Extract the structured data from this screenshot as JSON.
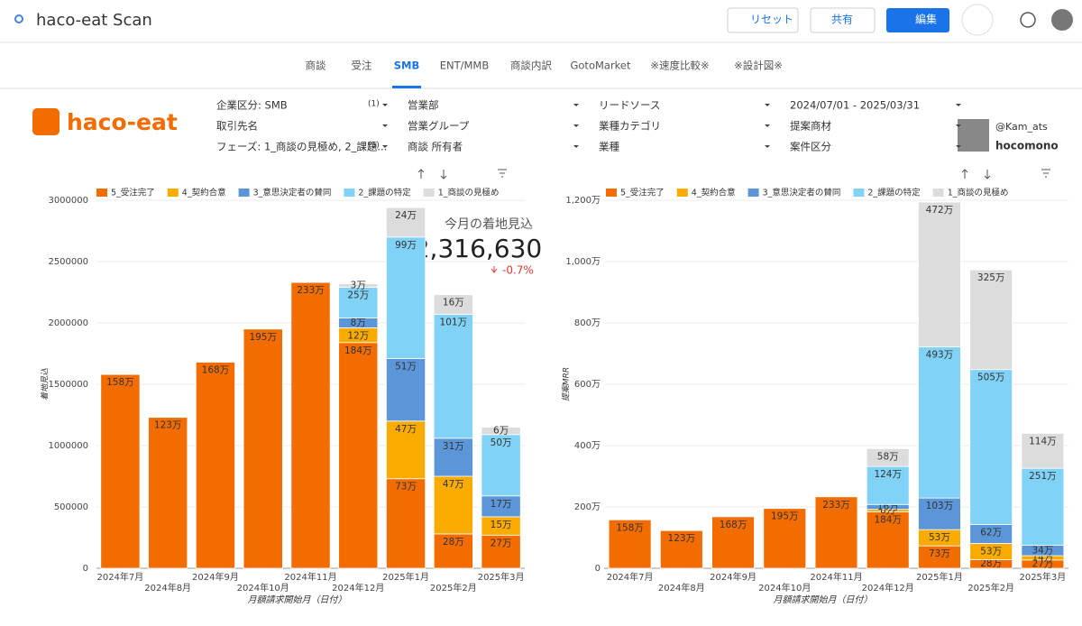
{
  "header": {
    "title": "haco-eat Scan",
    "buttons": [
      "リセット",
      "共有",
      "編集"
    ]
  },
  "tabs": {
    "items": [
      "商談",
      "受注",
      "SMB",
      "ENT/MMB",
      "商談内訳",
      "GotoMarket",
      "※速度比較※",
      "※設計図※"
    ],
    "active": 2
  },
  "logo": "haco-eat",
  "filters": [
    {
      "label": "企業区分: SMB",
      "count": "(1)"
    },
    {
      "label": "営業部"
    },
    {
      "label": "リードソース"
    },
    {
      "label": "2024/07/01 - 2025/03/31"
    },
    {
      "label": "取引先名"
    },
    {
      "label": "営業グループ"
    },
    {
      "label": "業種カテゴリ"
    },
    {
      "label": "提案商材"
    },
    {
      "label": "フェーズ: 1_商談の見極め, 2_課題...",
      "count": "(5)"
    },
    {
      "label": "商談 所有者"
    },
    {
      "label": "業種"
    },
    {
      "label": "案件区分"
    }
  ],
  "profile": {
    "handle": "@Kam_ats",
    "brand": "hocomono"
  },
  "kpi": {
    "title": "今月の着地見込",
    "value": "2,316,630",
    "change": "-0.7%"
  },
  "chart_data": [
    {
      "type": "stacked-bar",
      "y_label": "着地見込",
      "x_label": "月額請求開始月（日付）",
      "categories": [
        "2024年7月",
        "2024年8月",
        "2024年9月",
        "2024年10月",
        "2024年11月",
        "2024年12月",
        "2025年1月",
        "2025年2月",
        "2025年3月"
      ],
      "ylim": [
        0,
        3000000
      ],
      "yticks": [
        0,
        500000,
        1000000,
        1500000,
        2000000,
        2500000,
        3000000
      ],
      "grid": true,
      "series": [
        {
          "name": "5_受注完了",
          "color": "#f36c00",
          "values": [
            1580000,
            1230000,
            1680000,
            1950000,
            2330000,
            1840000,
            730000,
            280000,
            270000
          ],
          "value_labels": [
            "158万",
            "123万",
            "168万",
            "195万",
            "233万",
            "184万",
            "73万",
            "28万",
            "27万"
          ]
        },
        {
          "name": "4_契約合意",
          "color": "#f9ab00",
          "values": [
            null,
            null,
            null,
            null,
            null,
            120000,
            470000,
            470000,
            150000
          ],
          "value_labels": [
            null,
            null,
            null,
            null,
            null,
            "12万",
            "47万",
            "47万",
            "15万"
          ]
        },
        {
          "name": "3_意思決定者の賛同",
          "color": "#5b96d8",
          "values": [
            null,
            null,
            null,
            null,
            null,
            80000,
            510000,
            310000,
            170000
          ],
          "value_labels": [
            null,
            null,
            null,
            null,
            null,
            "8万",
            "51万",
            "31万",
            "17万"
          ]
        },
        {
          "name": "2_課題の特定",
          "color": "#80d2f7",
          "values": [
            null,
            null,
            null,
            null,
            null,
            250000,
            990000,
            1010000,
            500000
          ],
          "value_labels": [
            null,
            null,
            null,
            null,
            null,
            "25万",
            "99万",
            "101万",
            "50万"
          ]
        },
        {
          "name": "1_商談の見極め",
          "color": "#dcdcdc",
          "values": [
            null,
            null,
            null,
            null,
            null,
            30000,
            240000,
            160000,
            60000
          ],
          "value_labels": [
            null,
            null,
            null,
            null,
            null,
            "3万",
            "24万",
            "16万",
            "6万"
          ]
        }
      ]
    },
    {
      "type": "stacked-bar",
      "y_label": "提案MRR",
      "x_label": "月額請求開始月（日付）",
      "categories": [
        "2024年7月",
        "2024年8月",
        "2024年9月",
        "2024年10月",
        "2024年11月",
        "2024年12月",
        "2025年1月",
        "2025年2月",
        "2025年3月"
      ],
      "ylim": [
        0,
        12000000
      ],
      "yticks": [
        0,
        {
          "value": 2000000,
          "label": "200万"
        },
        {
          "value": 4000000,
          "label": "400万"
        },
        {
          "value": 6000000,
          "label": "600万"
        },
        {
          "value": 8000000,
          "label": "800万"
        },
        {
          "value": 10000000,
          "label": "1,000万"
        },
        {
          "value": 12000000,
          "label": "1,200万"
        }
      ],
      "grid": true,
      "series": [
        {
          "name": "5_受注完了",
          "color": "#f36c00",
          "values": [
            1580000,
            1230000,
            1680000,
            1950000,
            2330000,
            1840000,
            730000,
            280000,
            270000
          ],
          "value_labels": [
            "158万",
            "123万",
            "168万",
            "195万",
            "233万",
            "184万",
            "73万",
            "28万",
            "27万"
          ]
        },
        {
          "name": "4_契約合意",
          "color": "#f9ab00",
          "values": [
            null,
            null,
            null,
            null,
            null,
            80000,
            530000,
            530000,
            140000
          ],
          "value_labels": [
            null,
            null,
            null,
            null,
            null,
            "8万",
            "53万",
            "53万",
            "14万"
          ]
        },
        {
          "name": "3_意思決定者の賛同",
          "color": "#5b96d8",
          "values": [
            null,
            null,
            null,
            null,
            null,
            160000,
            1030000,
            620000,
            340000
          ],
          "value_labels": [
            null,
            null,
            null,
            null,
            null,
            "16万",
            "103万",
            "62万",
            "34万"
          ]
        },
        {
          "name": "2_課題の特定",
          "color": "#80d2f7",
          "values": [
            null,
            null,
            null,
            null,
            null,
            1240000,
            4930000,
            5050000,
            2510000
          ],
          "value_labels": [
            null,
            null,
            null,
            null,
            null,
            "124万",
            "493万",
            "505万",
            "251万"
          ]
        },
        {
          "name": "1_商談の見極め",
          "color": "#dcdcdc",
          "values": [
            null,
            null,
            null,
            null,
            null,
            580000,
            4720000,
            3250000,
            1140000
          ],
          "value_labels": [
            null,
            null,
            null,
            null,
            null,
            "58万",
            "472万",
            "325万",
            "114万"
          ]
        }
      ]
    }
  ]
}
